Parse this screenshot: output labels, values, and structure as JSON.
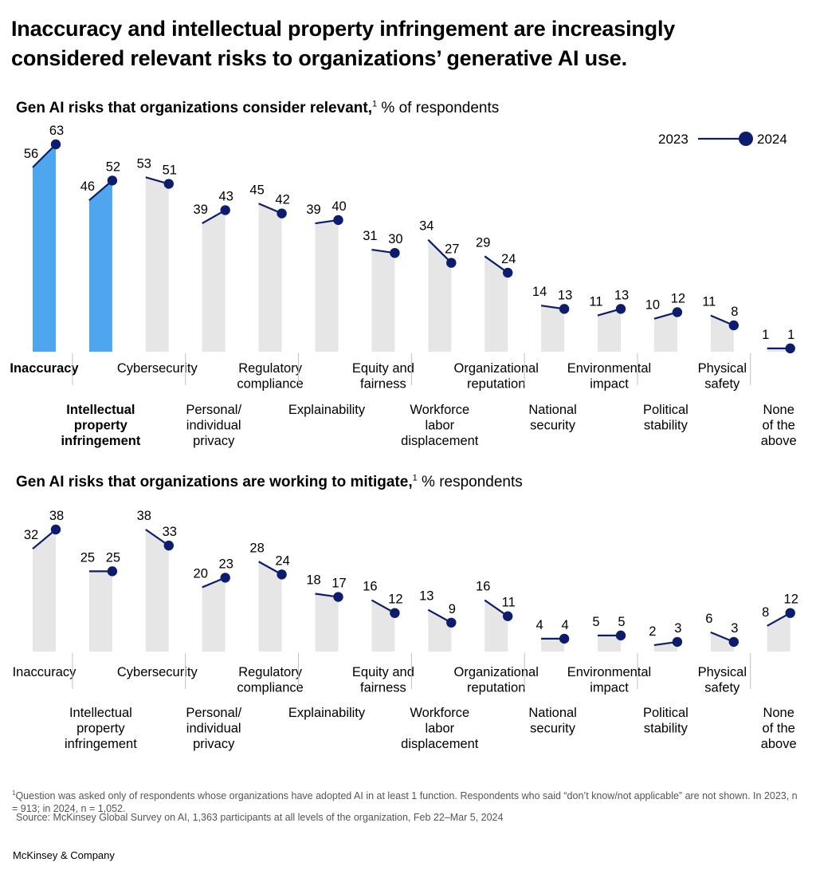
{
  "title": "Inaccuracy and intellectual property infringement are increasingly considered relevant risks to organizations’ generative AI use.",
  "legend": {
    "from": "2023",
    "to": "2024"
  },
  "colors": {
    "highlight": "#4ea6ee",
    "bar": "#e6e6e6",
    "line": "#0d1d6e",
    "text": "#000000"
  },
  "chart_data": [
    {
      "type": "bar",
      "title": "Gen AI risks that organizations consider relevant,",
      "title_suffix": "% of respondents",
      "footnote_mark": "1",
      "categories": [
        "Inaccuracy",
        "Intellectual property infringement",
        "Cybersecurity",
        "Personal/ individual privacy",
        "Regulatory compliance",
        "Explainability",
        "Equity and fairness",
        "Workforce labor displacement",
        "Organizational reputation",
        "National security",
        "Environmental impact",
        "Political stability",
        "Physical safety",
        "None of the above"
      ],
      "category_lines": [
        [
          "Inaccuracy"
        ],
        [
          "Intellectual",
          "property",
          "infringement"
        ],
        [
          "Cybersecurity"
        ],
        [
          "Personal/",
          "individual",
          "privacy"
        ],
        [
          "Regulatory",
          "compliance"
        ],
        [
          "Explainability"
        ],
        [
          "Equity and",
          "fairness"
        ],
        [
          "Workforce",
          "labor",
          "displacement"
        ],
        [
          "Organizational",
          "reputation"
        ],
        [
          "National",
          "security"
        ],
        [
          "Environmental",
          "impact"
        ],
        [
          "Political",
          "stability"
        ],
        [
          "Physical",
          "safety"
        ],
        [
          "None",
          "of the",
          "above"
        ]
      ],
      "series": [
        {
          "name": "2023",
          "values": [
            56,
            46,
            53,
            39,
            45,
            39,
            31,
            34,
            29,
            14,
            11,
            10,
            11,
            1
          ]
        },
        {
          "name": "2024",
          "values": [
            63,
            52,
            51,
            43,
            42,
            40,
            30,
            27,
            24,
            13,
            13,
            12,
            8,
            1
          ]
        }
      ],
      "highlighted": [
        "Inaccuracy",
        "Intellectual property infringement"
      ],
      "ylim": [
        0,
        63
      ]
    },
    {
      "type": "bar",
      "title": "Gen AI risks that organizations are working to mitigate,",
      "title_suffix": "% respondents",
      "footnote_mark": "1",
      "categories": [
        "Inaccuracy",
        "Intellectual property infringement",
        "Cybersecurity",
        "Personal/ individual privacy",
        "Regulatory compliance",
        "Explainability",
        "Equity and fairness",
        "Workforce labor displacement",
        "Organizational reputation",
        "National security",
        "Environmental impact",
        "Political stability",
        "Physical safety",
        "None of the above"
      ],
      "category_lines": [
        [
          "Inaccuracy"
        ],
        [
          "Intellectual",
          "property",
          "infringement"
        ],
        [
          "Cybersecurity"
        ],
        [
          "Personal/",
          "individual",
          "privacy"
        ],
        [
          "Regulatory",
          "compliance"
        ],
        [
          "Explainability"
        ],
        [
          "Equity and",
          "fairness"
        ],
        [
          "Workforce",
          "labor",
          "displacement"
        ],
        [
          "Organizational",
          "reputation"
        ],
        [
          "National",
          "security"
        ],
        [
          "Environmental",
          "impact"
        ],
        [
          "Political",
          "stability"
        ],
        [
          "Physical",
          "safety"
        ],
        [
          "None",
          "of the",
          "above"
        ]
      ],
      "series": [
        {
          "name": "2023",
          "values": [
            32,
            25,
            38,
            20,
            28,
            18,
            16,
            13,
            16,
            4,
            5,
            2,
            6,
            8
          ]
        },
        {
          "name": "2024",
          "values": [
            38,
            25,
            33,
            23,
            24,
            17,
            12,
            9,
            11,
            4,
            5,
            3,
            3,
            12
          ]
        }
      ],
      "highlighted": [],
      "ylim": [
        0,
        38
      ]
    }
  ],
  "footnote": {
    "mark": "1",
    "text": "Question was asked only of respondents whose organizations have adopted AI in at least 1 function. Respondents who said “don’t know/not applicable” are not shown. In 2023, n = 913; in 2024, n = 1,052.",
    "source": "Source: McKinsey Global Survey on AI, 1,363 participants at all levels of the organization, Feb 22–Mar 5, 2024"
  },
  "brand": "McKinsey & Company"
}
